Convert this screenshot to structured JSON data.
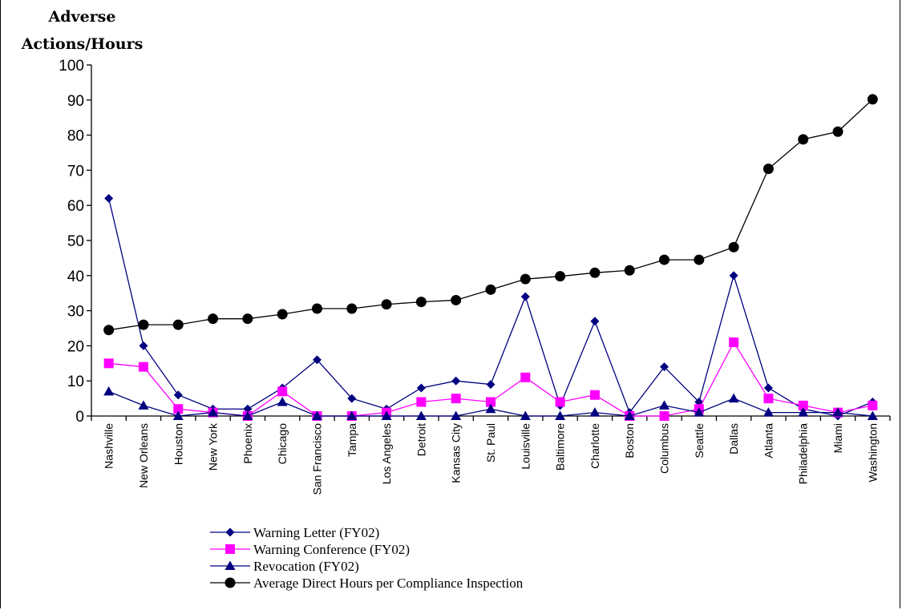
{
  "chart_data": {
    "type": "line",
    "ylabel": "Adverse Actions/Hours",
    "ylim": [
      0,
      100
    ],
    "yticks": [
      0,
      10,
      20,
      30,
      40,
      50,
      60,
      70,
      80,
      90,
      100
    ],
    "grid": false,
    "legend_position": "bottom",
    "categories": [
      "Nashville",
      "New Orleans",
      "Houston",
      "New York",
      "Phoenix",
      "Chicago",
      "San Francisco",
      "Tampa",
      "Los Angeles",
      "Detroit",
      "Kansas City",
      "St. Paul",
      "Louisville",
      "Baltimore",
      "Charlotte",
      "Boston",
      "Columbus",
      "Seattle",
      "Dallas",
      "Atlanta",
      "Philadelphia",
      "Miami",
      "Washington"
    ],
    "series": [
      {
        "name": "Warning Letter (FY02)",
        "color": "#000080",
        "marker": "diamond",
        "values": [
          62,
          20,
          6,
          2,
          2,
          8,
          16,
          5,
          2,
          8,
          10,
          9,
          34,
          3,
          27,
          1,
          14,
          4,
          40,
          8,
          2,
          0,
          4
        ]
      },
      {
        "name": "Warning Conference (FY02)",
        "color": "#ff00ff",
        "marker": "square",
        "values": [
          15,
          14,
          2,
          1,
          0,
          7,
          0,
          0,
          1,
          4,
          5,
          4,
          11,
          4,
          6,
          0,
          0,
          2,
          21,
          5,
          3,
          1,
          3
        ]
      },
      {
        "name": "Revocation (FY02)",
        "color": "#000080",
        "marker": "triangle",
        "values": [
          7,
          3,
          0,
          1,
          0,
          4,
          0,
          0,
          0,
          0,
          0,
          2,
          0,
          0,
          1,
          0,
          3,
          1,
          5,
          1,
          1,
          1,
          0
        ]
      },
      {
        "name": "Average Direct Hours per Compliance Inspection",
        "color": "#000000",
        "marker": "circle",
        "values": [
          24.5,
          26,
          26,
          27.7,
          27.7,
          29,
          30.6,
          30.6,
          31.8,
          32.5,
          33,
          36,
          39,
          39.8,
          40.8,
          41.5,
          44.5,
          44.5,
          48.1,
          70.4,
          78.8,
          81,
          90.2
        ]
      }
    ]
  }
}
